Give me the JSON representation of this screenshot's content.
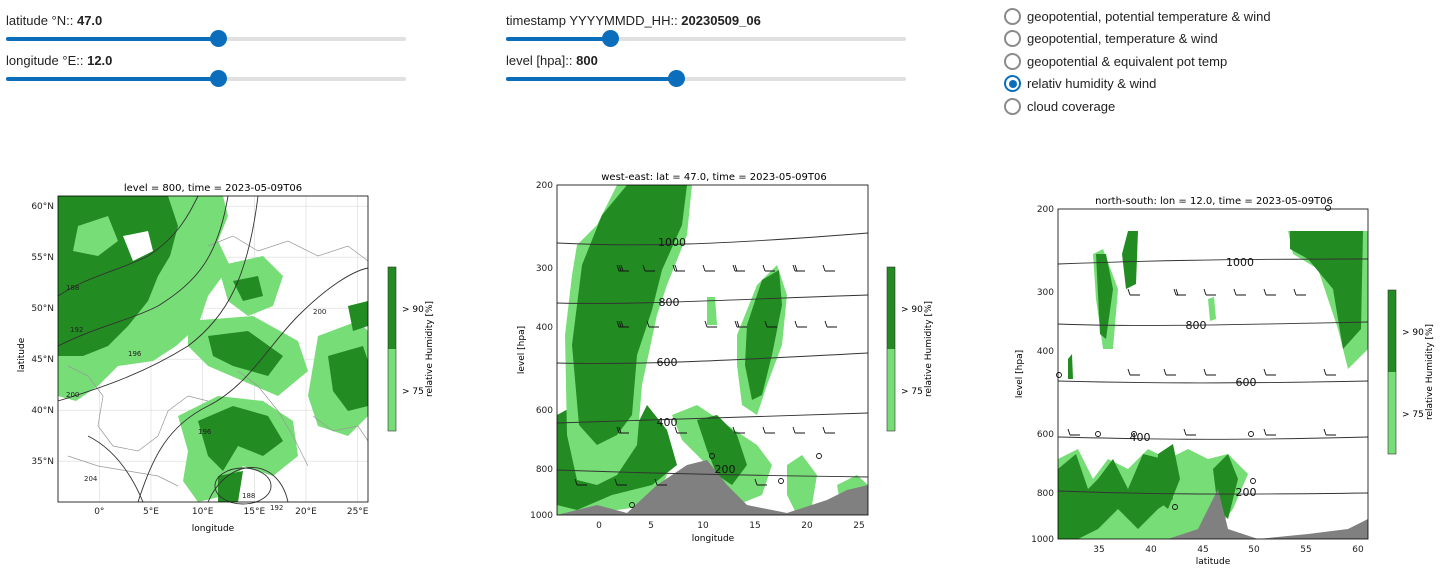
{
  "controls": {
    "latitude": {
      "label": "latitude °N:: ",
      "value": "47.0",
      "fraction": 0.53
    },
    "longitude": {
      "label": "longitude °E:: ",
      "value": "12.0",
      "fraction": 0.53
    },
    "timestamp": {
      "label": "timestamp YYYYMMDD_HH:: ",
      "value": "20230509_06",
      "fraction": 0.26
    },
    "level": {
      "label": "level [hpa]:: ",
      "value": "800",
      "fraction": 0.425
    }
  },
  "radio": {
    "options": [
      "geopotential, potential temperature & wind",
      "geopotential, temperature & wind",
      "geopotential & equivalent pot temp",
      "relativ humidity & wind",
      "cloud coverage"
    ],
    "selected_index": 3
  },
  "colors": {
    "accent": "#0a6ebd",
    "dark_green": "#228b22",
    "light_green": "#77dd77",
    "terrain": "#808080"
  },
  "colorbar": {
    "label": "relative Humidity [%]",
    "ticks": [
      "> 90",
      "> 75"
    ]
  },
  "chart_data": [
    {
      "type": "map",
      "title": "level = 800, time = 2023-05-09T06",
      "xlabel": "longitude",
      "ylabel": "latitude",
      "xlim": [
        -4,
        26
      ],
      "ylim": [
        31,
        61
      ],
      "xticks": [
        0,
        5,
        10,
        15,
        20,
        25
      ],
      "xtick_labels": [
        "0°",
        "5°E",
        "10°E",
        "15°E",
        "20°E",
        "25°E"
      ],
      "yticks": [
        35,
        40,
        45,
        50,
        55,
        60
      ],
      "ytick_labels": [
        "35°N",
        "40°N",
        "45°N",
        "50°N",
        "55°N",
        "60°N"
      ],
      "contour_labels": [
        "188",
        "192",
        "196",
        "200",
        "204",
        "196",
        "188",
        "192",
        "200"
      ],
      "grid": true
    },
    {
      "type": "heatmap",
      "title": "west-east: lat = 47.0, time = 2023-05-09T06",
      "xlabel": "longitude",
      "ylabel": "level [hpa]",
      "xlim": [
        -4,
        26
      ],
      "ylim": [
        1000,
        200
      ],
      "xticks": [
        "0",
        "5",
        "10",
        "15",
        "20",
        "25"
      ],
      "yticks": [
        "200",
        "300",
        "400",
        "600",
        "800",
        "1000"
      ],
      "contour_labels": [
        "1000",
        "800",
        "600",
        "400",
        "200"
      ]
    },
    {
      "type": "heatmap",
      "title": "north-south: lon = 12.0, time = 2023-05-09T06",
      "xlabel": "latitude",
      "ylabel": "level [hpa]",
      "xlim": [
        31,
        61
      ],
      "ylim": [
        1000,
        200
      ],
      "xticks": [
        "35",
        "40",
        "45",
        "50",
        "55",
        "60"
      ],
      "yticks": [
        "200",
        "300",
        "400",
        "600",
        "800",
        "1000"
      ],
      "contour_labels": [
        "1000",
        "800",
        "600",
        "400",
        "200"
      ]
    }
  ]
}
